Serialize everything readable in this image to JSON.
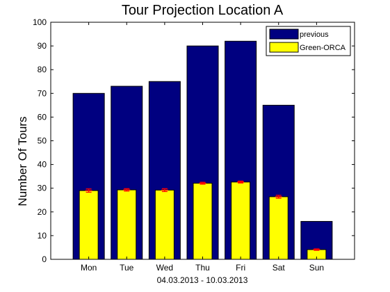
{
  "chart_data": {
    "type": "bar",
    "title": "Tour Projection Location A",
    "xlabel": "04.03.2013 - 10.03.2013",
    "ylabel": "Number Of Tours",
    "categories": [
      "Mon",
      "Tue",
      "Wed",
      "Thu",
      "Fri",
      "Sat",
      "Sun"
    ],
    "ylim": [
      0,
      100
    ],
    "yticks": [
      0,
      10,
      20,
      30,
      40,
      50,
      60,
      70,
      80,
      90,
      100
    ],
    "grid": false,
    "legend_position": "top-right",
    "series": [
      {
        "name": "previous",
        "color": "#000080",
        "values": [
          70,
          73,
          75,
          90,
          92,
          65,
          16
        ]
      },
      {
        "name": "Green-ORCA",
        "color": "#ffff00",
        "values": [
          29,
          29.3,
          29.2,
          32.1,
          32.6,
          26.4,
          4.1
        ],
        "error": [
          0.7,
          0.5,
          0.6,
          0.4,
          0.4,
          0.6,
          0.3
        ],
        "error_color": "#ff0000"
      }
    ]
  }
}
